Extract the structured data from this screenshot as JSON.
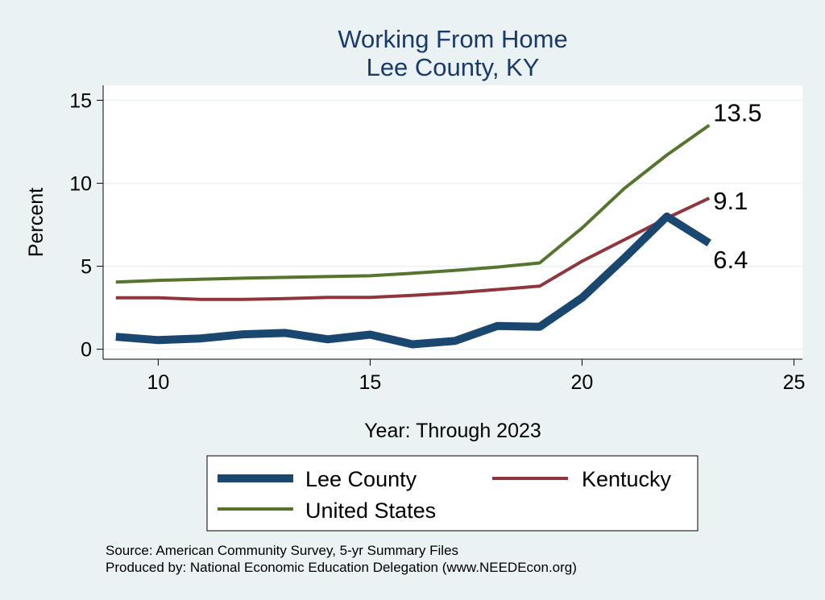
{
  "chart_data": {
    "type": "line",
    "title": "Working From Home",
    "subtitle": "Lee County, KY",
    "xlabel": "Year: Through 2023",
    "ylabel": "Percent",
    "xlim": [
      8.7,
      25.2
    ],
    "ylim": [
      -0.6,
      15.9
    ],
    "xticks": [
      10,
      15,
      20,
      25
    ],
    "yticks": [
      0,
      5,
      10,
      15
    ],
    "grid": true,
    "legend_position": "bottom",
    "x": [
      9,
      10,
      11,
      12,
      13,
      14,
      15,
      16,
      17,
      18,
      19,
      20,
      21,
      22,
      23
    ],
    "series": [
      {
        "name": "Lee County",
        "color": "#1a476f",
        "values": [
          0.75,
          0.55,
          0.65,
          0.9,
          0.98,
          0.6,
          0.88,
          0.3,
          0.5,
          1.4,
          1.35,
          3.1,
          5.5,
          8.0,
          6.4
        ],
        "end_label": "6.4"
      },
      {
        "name": "Kentucky",
        "color": "#90353b",
        "values": [
          3.1,
          3.1,
          3.0,
          3.0,
          3.05,
          3.12,
          3.12,
          3.25,
          3.4,
          3.6,
          3.8,
          5.3,
          6.6,
          7.9,
          9.1
        ],
        "end_label": "9.1"
      },
      {
        "name": "United States",
        "color": "#55752f",
        "values": [
          4.05,
          4.15,
          4.22,
          4.28,
          4.33,
          4.38,
          4.43,
          4.58,
          4.75,
          4.95,
          5.2,
          7.3,
          9.7,
          11.7,
          13.5
        ],
        "end_label": "13.5"
      }
    ],
    "notes": [
      "Source: American Community Survey, 5-yr Summary Files",
      "Produced by: National Economic Education Delegation (www.NEEDEcon.org)"
    ]
  }
}
